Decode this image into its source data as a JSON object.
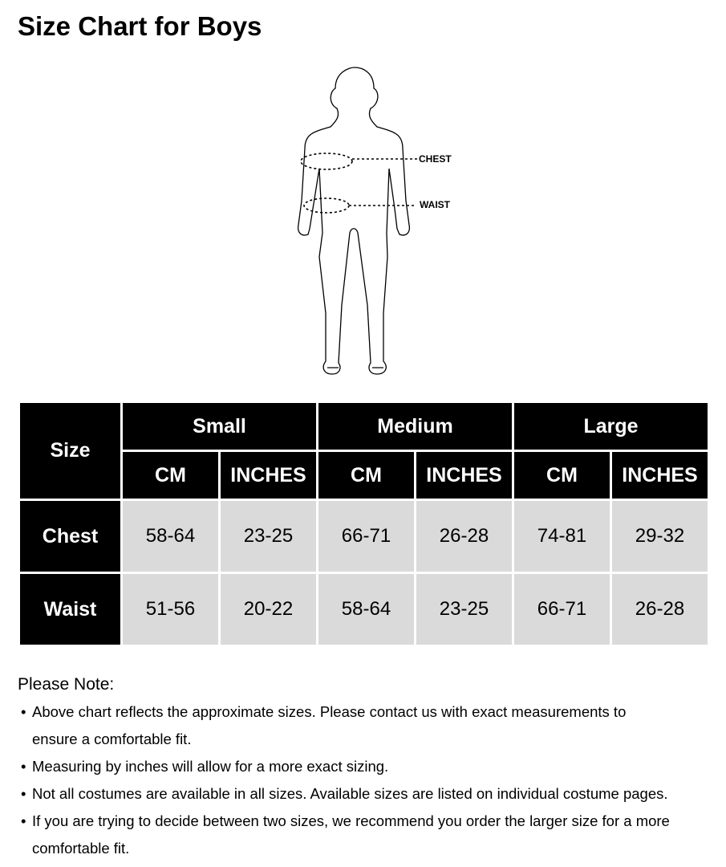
{
  "title": "Size Chart for Boys",
  "figure": {
    "labels": {
      "chest": "CHEST",
      "waist": "WAIST"
    }
  },
  "table": {
    "corner": "Size",
    "groups": [
      "Small",
      "Medium",
      "Large"
    ],
    "units": [
      "CM",
      "INCHES",
      "CM",
      "INCHES",
      "CM",
      "INCHES"
    ],
    "rows": [
      {
        "label": "Chest",
        "values": [
          "58-64",
          "23-25",
          "66-71",
          "26-28",
          "74-81",
          "29-32"
        ]
      },
      {
        "label": "Waist",
        "values": [
          "51-56",
          "20-22",
          "58-64",
          "23-25",
          "66-71",
          "26-28"
        ]
      }
    ]
  },
  "notes": {
    "heading": "Please Note:",
    "bullet": "•",
    "items": [
      {
        "line1": "Above chart reflects the approximate sizes. Please contact us with exact measurements to",
        "line2": "ensure a comfortable fit."
      },
      {
        "line1": "Measuring by inches will allow for a more exact sizing."
      },
      {
        "line1": "Not all costumes are available in all sizes. Available sizes are listed on individual costume pages."
      },
      {
        "line1": "If you are trying to decide between two sizes, we recommend you order the larger size for a more",
        "line2": "comfortable fit."
      }
    ]
  }
}
